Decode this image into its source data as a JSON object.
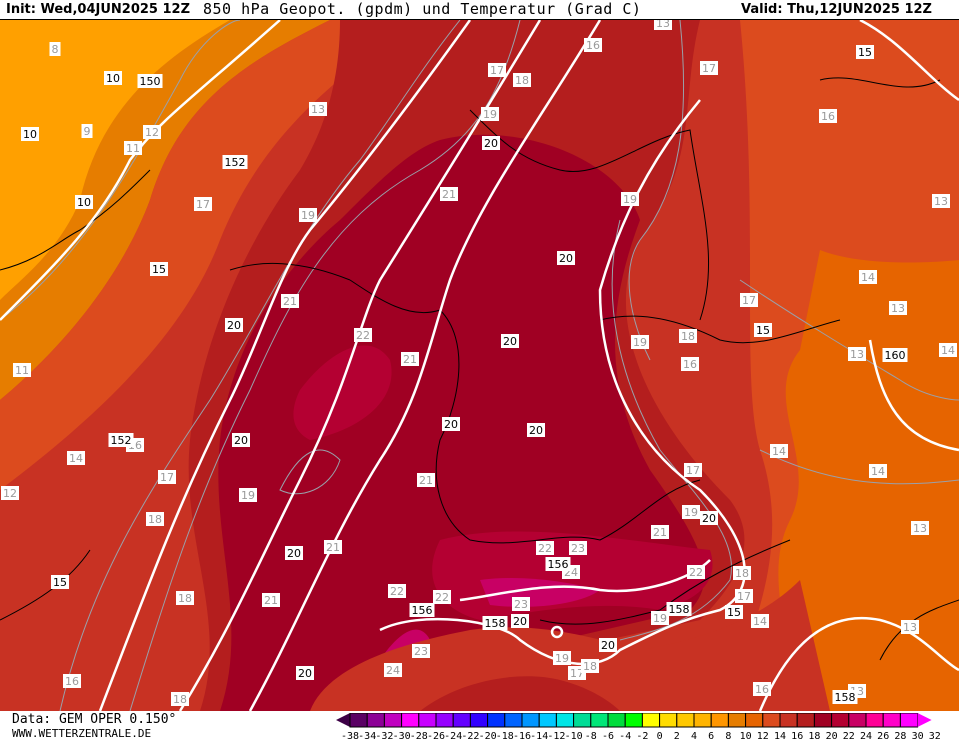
{
  "header": {
    "init": "Init: Wed,04JUN2025 12Z",
    "title": "850 hPa Geopot. (gpdm) und Temperatur (Grad C)",
    "valid": "Valid: Thu,12JUN2025 12Z"
  },
  "footer": {
    "data_source": "Data: GEM OPER 0.150°",
    "website": "WWW.WETTERZENTRALE.DE"
  },
  "colorbar": {
    "labels": [
      "-38",
      "-34",
      "-32",
      "-30",
      "-28",
      "-26",
      "-24",
      "-22",
      "-20",
      "-18",
      "-16",
      "-14",
      "-12",
      "-10",
      "-8",
      "-6",
      "-4",
      "-2",
      "0",
      "2",
      "4",
      "6",
      "8",
      "10",
      "12",
      "14",
      "16",
      "18",
      "20",
      "22",
      "24",
      "26",
      "28",
      "30",
      "32"
    ],
    "colors": [
      "#5a0064",
      "#8c0096",
      "#c000c0",
      "#ff00ff",
      "#c800ff",
      "#9600ff",
      "#6400ff",
      "#3200ff",
      "#0032ff",
      "#0064ff",
      "#0096ff",
      "#00c8ff",
      "#00e6e6",
      "#00dc96",
      "#00e678",
      "#00dc3c",
      "#00ff00",
      "#ffff00",
      "#ffdc00",
      "#ffc800",
      "#ffb400",
      "#ff9600",
      "#e67d00",
      "#e66400",
      "#dc4b1e",
      "#c83223",
      "#b41e1e",
      "#a00023",
      "#b40032",
      "#c80064",
      "#ff0096",
      "#ff00c8",
      "#ff00ff"
    ],
    "low_arrow_color": "#3c0046",
    "high_arrow_color": "#ff00ff"
  },
  "map": {
    "isotherm_labels": [
      "8",
      "9",
      "12",
      "11",
      "13",
      "17",
      "19",
      "21",
      "21",
      "22",
      "21",
      "19",
      "18",
      "17",
      "16",
      "13",
      "17",
      "16",
      "13",
      "19",
      "17",
      "18",
      "19",
      "16",
      "13",
      "14",
      "13",
      "14",
      "14",
      "14",
      "17",
      "19",
      "21",
      "13",
      "13",
      "14",
      "16",
      "11",
      "14",
      "12",
      "16",
      "17",
      "18",
      "19",
      "21",
      "21",
      "21",
      "18",
      "16",
      "18",
      "22",
      "22",
      "22",
      "23",
      "24",
      "22",
      "18",
      "17",
      "19",
      "23",
      "23",
      "24",
      "19",
      "17",
      "18",
      "13"
    ],
    "bold_labels": [
      "10",
      "150",
      "10",
      "152",
      "10",
      "15",
      "20",
      "20",
      "20",
      "20",
      "15",
      "160",
      "20",
      "20",
      "152",
      "20",
      "20",
      "20",
      "15",
      "156",
      "156",
      "158",
      "20",
      "158",
      "15",
      "20",
      "20",
      "158",
      "15"
    ]
  }
}
